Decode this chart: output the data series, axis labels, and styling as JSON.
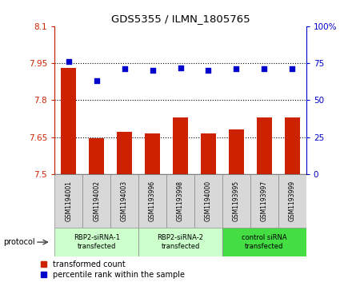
{
  "title": "GDS5355 / ILMN_1805765",
  "samples": [
    "GSM1194001",
    "GSM1194002",
    "GSM1194003",
    "GSM1193996",
    "GSM1193998",
    "GSM1194000",
    "GSM1193995",
    "GSM1193997",
    "GSM1193999"
  ],
  "bar_values": [
    7.93,
    7.645,
    7.67,
    7.665,
    7.73,
    7.665,
    7.68,
    7.73,
    7.73
  ],
  "dot_values": [
    76,
    63,
    71,
    70,
    72,
    70,
    71,
    71,
    71
  ],
  "bar_color": "#cc2200",
  "dot_color": "#0000cc",
  "ylim_left": [
    7.5,
    8.1
  ],
  "ylim_right": [
    0,
    100
  ],
  "yticks_left": [
    7.5,
    7.65,
    7.8,
    7.95,
    8.1
  ],
  "yticks_right": [
    0,
    25,
    50,
    75,
    100
  ],
  "ytick_labels_left": [
    "7.5",
    "7.65",
    "7.8",
    "7.95",
    "8.1"
  ],
  "ytick_labels_right": [
    "0",
    "25",
    "50",
    "75",
    "100%"
  ],
  "hlines": [
    7.65,
    7.8,
    7.95
  ],
  "groups": [
    {
      "label": "RBP2-siRNA-1\ntransfected",
      "start": 0,
      "end": 3,
      "color": "#ccffcc"
    },
    {
      "label": "RBP2-siRNA-2\ntransfected",
      "start": 3,
      "end": 6,
      "color": "#ccffcc"
    },
    {
      "label": "control siRNA\ntransfected",
      "start": 6,
      "end": 9,
      "color": "#44dd44"
    }
  ],
  "protocol_label": "protocol",
  "legend_bar_label": "transformed count",
  "legend_dot_label": "percentile rank within the sample",
  "sample_bg_color": "#d8d8d8",
  "plot_bg_color": "#ffffff"
}
